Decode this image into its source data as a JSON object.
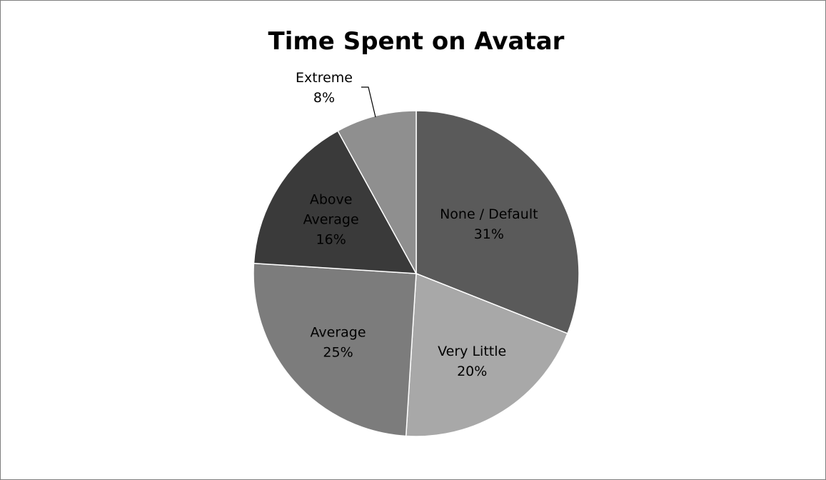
{
  "chart_data": {
    "type": "pie",
    "title": "Time Spent on Avatar",
    "slices": [
      {
        "label": "None / Default",
        "value": 31,
        "percent_label": "31%",
        "color": "#5a5a5a"
      },
      {
        "label": "Very Little",
        "value": 20,
        "percent_label": "20%",
        "color": "#a8a8a8"
      },
      {
        "label": "Average",
        "value": 25,
        "percent_label": "25%",
        "color": "#7c7c7c"
      },
      {
        "label": "Above Average",
        "value": 16,
        "percent_label": "16%",
        "color": "#3a3a3a"
      },
      {
        "label": "Extreme",
        "value": 8,
        "percent_label": "8%",
        "color": "#8f8f8f"
      }
    ],
    "legend": "none",
    "data_labels": "category and percentage"
  }
}
